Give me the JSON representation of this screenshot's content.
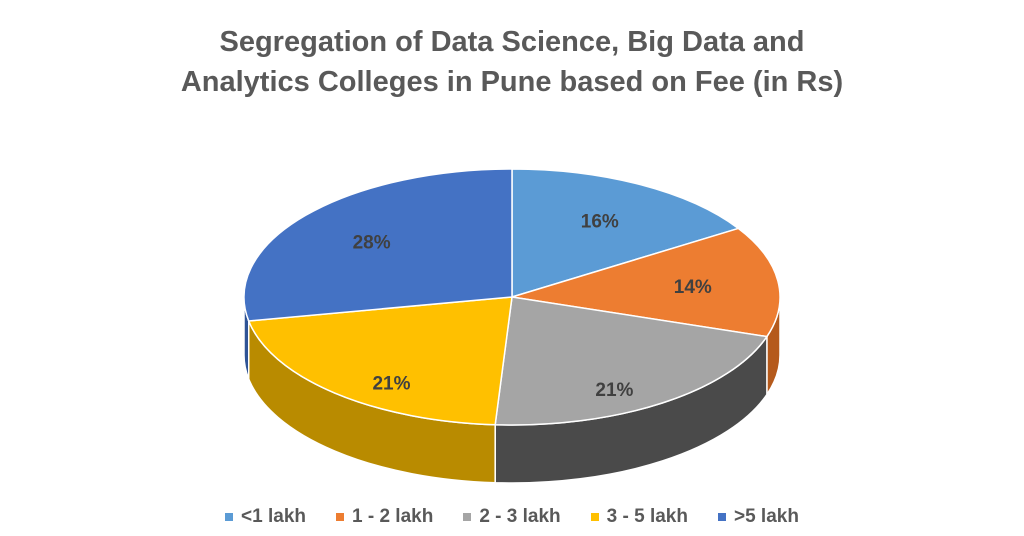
{
  "chart_data": {
    "type": "pie",
    "title_line1": "Segregation of Data Science, Big Data and",
    "title_line2": "Analytics Colleges in Pune based on Fee (in Rs)",
    "three_d": true,
    "legend_position": "bottom",
    "slices": [
      {
        "label": "<1 lakh",
        "value": 16,
        "data_label": "16%",
        "color": "#5B9BD5",
        "side": "#3f74a8"
      },
      {
        "label": "1 - 2 lakh",
        "value": 14,
        "data_label": "14%",
        "color": "#ED7D31",
        "side": "#b55a1c"
      },
      {
        "label": "2 - 3 lakh",
        "value": 21,
        "data_label": "21%",
        "color": "#A5A5A5",
        "side": "#4a4a4a"
      },
      {
        "label": "3 - 5 lakh",
        "value": 21,
        "data_label": "21%",
        "color": "#FFC000",
        "side": "#b98b00"
      },
      {
        "label": ">5 lakh",
        "value": 28,
        "data_label": "28%",
        "color": "#4472C4",
        "side": "#2f5496"
      }
    ]
  }
}
